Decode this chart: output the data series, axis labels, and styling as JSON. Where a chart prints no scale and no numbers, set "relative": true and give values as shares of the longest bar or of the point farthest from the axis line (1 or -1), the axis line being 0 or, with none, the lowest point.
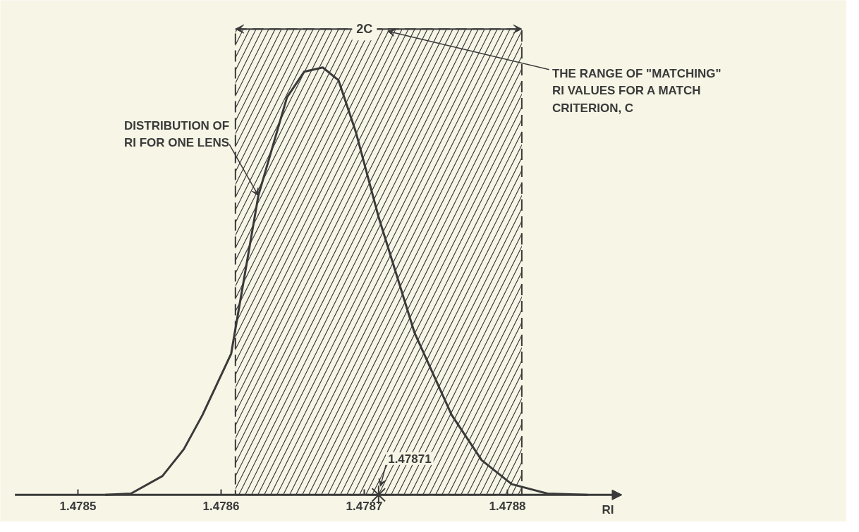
{
  "chart_data": {
    "type": "line",
    "relative": true,
    "x": [
      1.478519,
      1.478537,
      1.478559,
      1.478574,
      1.478587,
      1.478607,
      1.478626,
      1.478646,
      1.478658,
      1.478671,
      1.478682,
      1.478694,
      1.47871,
      1.478735,
      1.478761,
      1.478782,
      1.478803,
      1.478828,
      1.478856
    ],
    "series": [
      {
        "color": "#3a3a3a",
        "values": [
          0.0,
          0.003,
          0.044,
          0.107,
          0.187,
          0.33,
          0.7,
          0.93,
          0.99,
          1.0,
          0.97,
          0.85,
          0.65,
          0.38,
          0.187,
          0.081,
          0.025,
          0.003,
          0.0
        ]
      }
    ],
    "xlim": [
      1.478456,
      1.47888
    ],
    "xticks": [
      1.4785,
      1.4786,
      1.4787,
      1.4788
    ],
    "xlabel": "RI",
    "bands": [
      {
        "axis": "x",
        "from": 1.47861,
        "to": 1.47881,
        "label": "2C"
      }
    ],
    "annotations": [
      {
        "text": "1.47871",
        "x": 1.47871,
        "y": 0
      },
      {
        "text": "DISTRIBUTION OF\nRI FOR ONE LENS",
        "x": 1.478626,
        "y": 0.7
      },
      "THE RANGE OF \"MATCHING\"\nRI VALUES FOR A MATCH\nCRITERION, C"
    ],
    "marker": "none",
    "line_style": "solid"
  }
}
